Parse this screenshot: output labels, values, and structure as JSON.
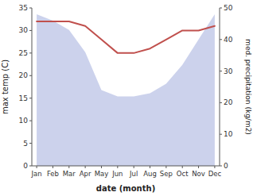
{
  "chart_data": {
    "type": "line",
    "categories": [
      "Jan",
      "Feb",
      "Mar",
      "Apr",
      "May",
      "Jun",
      "Jul",
      "Aug",
      "Sep",
      "Oct",
      "Nov",
      "Dec"
    ],
    "series": [
      {
        "type": "area",
        "axis": "y2",
        "color": "#aab4e0",
        "values": [
          48,
          46,
          43,
          36,
          24,
          22,
          22,
          23,
          26,
          32,
          40,
          48
        ]
      },
      {
        "type": "line",
        "color": "#c0504d",
        "values": [
          32,
          32,
          32,
          31,
          28,
          25,
          25,
          26,
          28,
          30,
          30,
          31
        ]
      }
    ],
    "xlabel": "date (month)",
    "ylabel": "max temp (C)",
    "y2label": "med. precipitation (kg/m2)",
    "ylim": [
      0,
      35
    ],
    "yticks": [
      0,
      5,
      10,
      15,
      20,
      25,
      30,
      35
    ],
    "y2lim": [
      0,
      50
    ],
    "y2ticks": [
      0,
      10,
      20,
      30,
      40,
      50
    ]
  }
}
